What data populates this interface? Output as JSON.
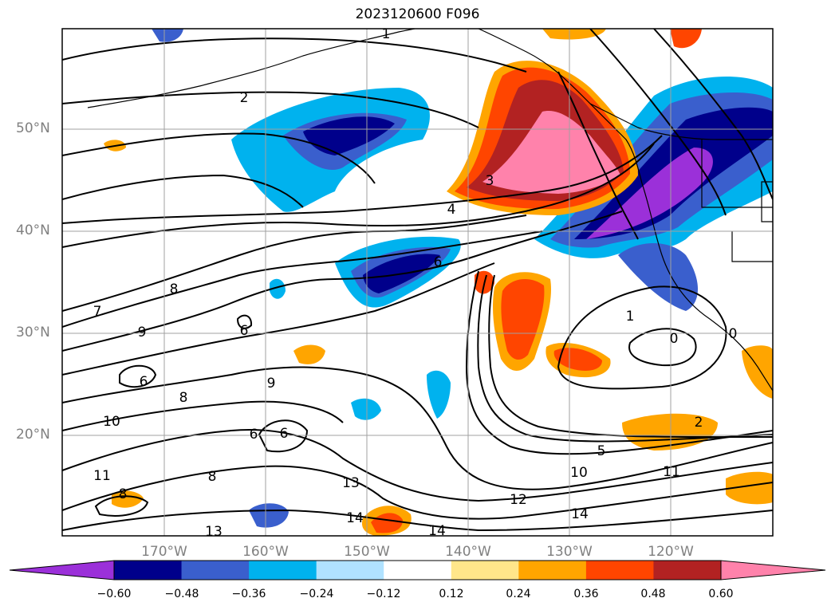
{
  "title": "2023120600 F096",
  "lat_labels": [
    "50°N",
    "40°N",
    "30°N",
    "20°N"
  ],
  "lon_labels": [
    "170°W",
    "160°W",
    "150°W",
    "140°W",
    "130°W",
    "120°W"
  ],
  "colorbar": {
    "ticks": [
      "−0.60",
      "−0.48",
      "−0.36",
      "−0.24",
      "−0.12",
      "0.12",
      "0.24",
      "0.36",
      "0.48",
      "0.60"
    ],
    "colors": [
      "#9b30d9",
      "#00008b",
      "#3a5fcd",
      "#00b2ee",
      "#b0e2ff",
      "#ffffff",
      "#ffe68a",
      "#ffa500",
      "#ff4500",
      "#b22222",
      "#ff82ab"
    ]
  },
  "contour_labels": [
    "1",
    "2",
    "3",
    "4",
    "6",
    "8",
    "7",
    "9",
    "6",
    "6",
    "8",
    "9",
    "10",
    "11",
    "8",
    "8",
    "6",
    "6",
    "13",
    "13",
    "14",
    "14",
    "12",
    "10",
    "5",
    "11",
    "14",
    "2",
    "1",
    "0",
    "0"
  ]
}
